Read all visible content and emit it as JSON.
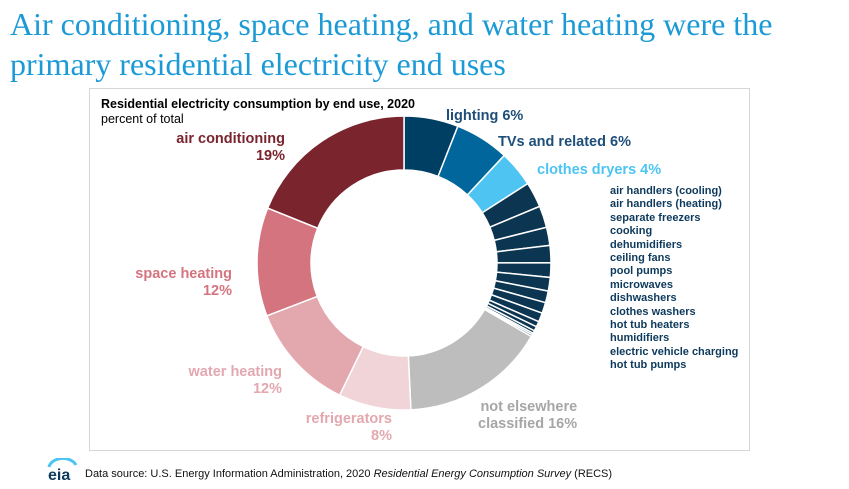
{
  "slide_title": "Air conditioning, space heating, and water heating were the primary residential electricity end uses",
  "chart_data": {
    "type": "pie",
    "title": "Residential electricity consumption by end use, 2020",
    "subtitle": "percent of total",
    "slices": [
      {
        "name": "lighting",
        "value": 6,
        "label": "lighting 6%",
        "color": "#003f64"
      },
      {
        "name": "TVs and related",
        "value": 6,
        "label": "TVs and related 6%",
        "color": "#00669c"
      },
      {
        "name": "clothes dryers",
        "value": 4,
        "label": "clothes dryers 4%",
        "color": "#4dc4f2"
      },
      {
        "name": "air handlers (cooling)",
        "value": 2.8,
        "color": "#0c3552"
      },
      {
        "name": "air handlers (heating)",
        "value": 2.4,
        "color": "#0c3552"
      },
      {
        "name": "separate freezers",
        "value": 2.0,
        "color": "#0c3552"
      },
      {
        "name": "cooking",
        "value": 1.9,
        "color": "#0c3552"
      },
      {
        "name": "dehumidifiers",
        "value": 1.6,
        "color": "#0c3552"
      },
      {
        "name": "ceiling fans",
        "value": 1.5,
        "color": "#0c3552"
      },
      {
        "name": "pool pumps",
        "value": 1.3,
        "color": "#0c3552"
      },
      {
        "name": "microwaves",
        "value": 1.2,
        "color": "#0c3552"
      },
      {
        "name": "dishwashers",
        "value": 1.0,
        "color": "#0c3552"
      },
      {
        "name": "clothes washers",
        "value": 0.6,
        "color": "#0c3552"
      },
      {
        "name": "hot tub heaters",
        "value": 0.5,
        "color": "#0c3552"
      },
      {
        "name": "humidifiers",
        "value": 0.3,
        "color": "#0c3552"
      },
      {
        "name": "electric vehicle charging",
        "value": 0.2,
        "color": "#0c3552"
      },
      {
        "name": "hot tub pumps",
        "value": 0.2,
        "color": "#0c3552"
      },
      {
        "name": "not elsewhere classified",
        "value": 16,
        "label_lines": [
          "not elsewhere",
          "classified 16%"
        ],
        "color": "#bdbdbd"
      },
      {
        "name": "refrigerators",
        "value": 8,
        "label_lines": [
          "refrigerators",
          "8%"
        ],
        "color": "#f0d4d7"
      },
      {
        "name": "water heating",
        "value": 12,
        "label_lines": [
          "water heating",
          "12%"
        ],
        "color": "#e3a8ae"
      },
      {
        "name": "space heating",
        "value": 12,
        "label_lines": [
          "space heating",
          "12%"
        ],
        "color": "#d4747f"
      },
      {
        "name": "air conditioning",
        "value": 19,
        "label_lines": [
          "air conditioning",
          "19%"
        ],
        "color": "#7a242e"
      }
    ],
    "small_slice_list": [
      "air handlers (cooling)",
      "air handlers (heating)",
      "separate freezers",
      "cooking",
      "dehumidifiers",
      "ceiling fans",
      "pool pumps",
      "microwaves",
      "dishwashers",
      "clothes washers",
      "hot tub heaters",
      "humidifiers",
      "electric vehicle charging",
      "hot tub pumps"
    ],
    "label_colors": {
      "dark_blue": "#1e4e79",
      "light_blue": "#4dc4f2",
      "maroon": "#7a242e",
      "pink": "#d4747f",
      "light_pink": "#e3a8ae",
      "gray": "#a6a6a6"
    }
  },
  "footer": {
    "logo_text": "eia",
    "source_prefix": "Data source: U.S. Energy Information Administration, 2020 ",
    "source_italic": "Residential Energy Consumption Survey",
    "source_suffix": " (RECS)"
  }
}
